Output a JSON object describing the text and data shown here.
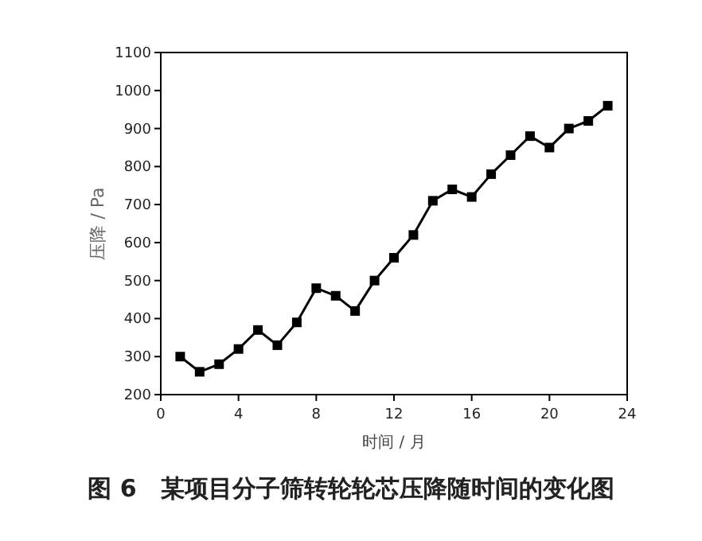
{
  "chart_data": {
    "type": "line",
    "title": "图 6　某项目分子筛转轮轮芯压降随时间的变化图",
    "xlabel": "时间 / 月",
    "ylabel": "压降 / Pa",
    "x": [
      1,
      2,
      3,
      4,
      5,
      6,
      7,
      8,
      9,
      10,
      11,
      12,
      13,
      14,
      15,
      16,
      17,
      18,
      19,
      20,
      21,
      22,
      23
    ],
    "series": [
      {
        "color": "#000000",
        "values": [
          300,
          260,
          280,
          320,
          370,
          330,
          390,
          480,
          460,
          420,
          500,
          560,
          620,
          710,
          740,
          720,
          780,
          830,
          880,
          850,
          900,
          920,
          960
        ]
      }
    ],
    "xlim": [
      0,
      24
    ],
    "xticks": [
      0,
      4,
      8,
      12,
      16,
      20,
      24
    ],
    "ylim": [
      200,
      1100
    ],
    "yticks": [
      200,
      300,
      400,
      500,
      600,
      700,
      800,
      900,
      1000,
      1100
    ],
    "marker": "square",
    "line_style": "solid",
    "grid": false
  }
}
